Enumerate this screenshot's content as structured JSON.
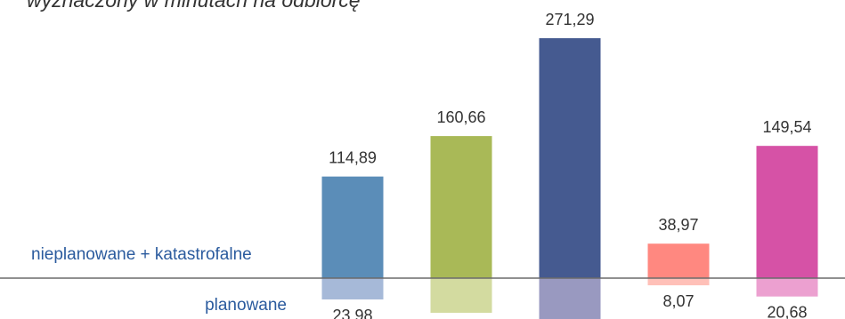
{
  "subtitle": "wyznaczony w minutach na odbiorcę",
  "chart_data": {
    "type": "bar",
    "title": "",
    "xlabel": "",
    "ylabel": "",
    "grid": false,
    "series": [
      {
        "name": "nieplanowane + katastrofalne",
        "values": [
          114.89,
          160.66,
          271.29,
          38.97,
          149.54
        ],
        "labels": [
          "114,89",
          "160,66",
          "271,29",
          "38,97",
          "149,54"
        ],
        "colors": [
          "#5b8db8",
          "#a9b957",
          "#455a90",
          "#ff8880",
          "#d652a6"
        ]
      },
      {
        "name": "planowane",
        "values": [
          23.98,
          39,
          50,
          8.07,
          20.68
        ],
        "labels": [
          "23,98",
          null,
          null,
          "8,07",
          "20,68"
        ],
        "colors": [
          "#a6b9d8",
          "#d3dba0",
          "#9999c0",
          "#ffc0b8",
          "#eca0d0"
        ]
      }
    ],
    "axis_line_color": "#6b6b6b"
  }
}
